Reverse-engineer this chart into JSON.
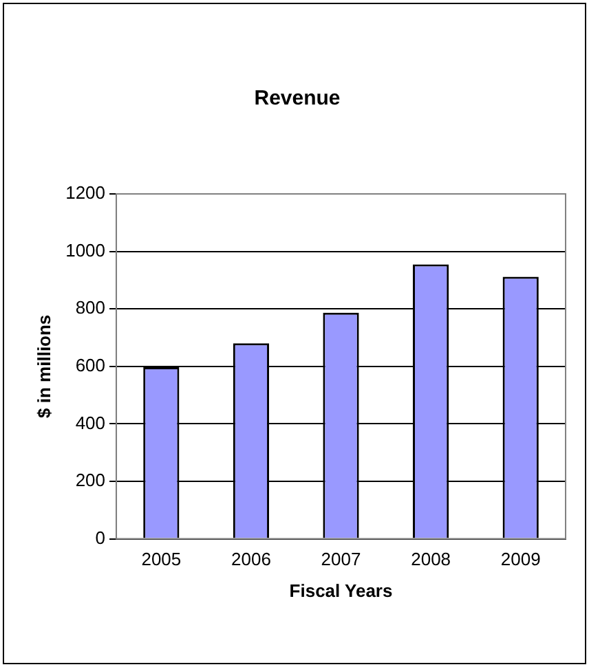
{
  "chart_data": {
    "type": "bar",
    "title": "Revenue",
    "xlabel": "Fiscal Years",
    "ylabel": "$ in millions",
    "categories": [
      "2005",
      "2006",
      "2007",
      "2008",
      "2009"
    ],
    "values": [
      597,
      680,
      787,
      955,
      912
    ],
    "color": "#9999ff",
    "ylim": [
      0,
      1200
    ],
    "yticks": [
      0,
      200,
      400,
      600,
      800,
      1000,
      1200
    ],
    "grid": "y",
    "legend": false
  }
}
